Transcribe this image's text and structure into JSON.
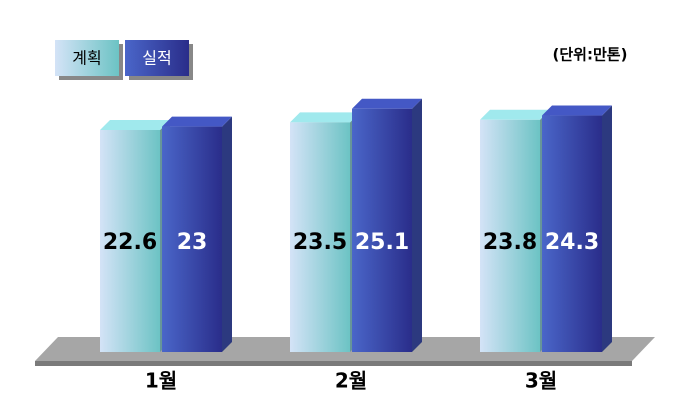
{
  "chart_data": {
    "type": "bar3d",
    "unit_label": "(단위:만톤)",
    "categories": [
      "1월",
      "2월",
      "3월"
    ],
    "series": [
      {
        "name": "계획",
        "color": "#8fd0d4",
        "values": [
          22.6,
          23.5,
          23.8
        ]
      },
      {
        "name": "실적",
        "color": "#3d4fb0",
        "values": [
          23.0,
          25.1,
          24.3
        ]
      }
    ]
  }
}
